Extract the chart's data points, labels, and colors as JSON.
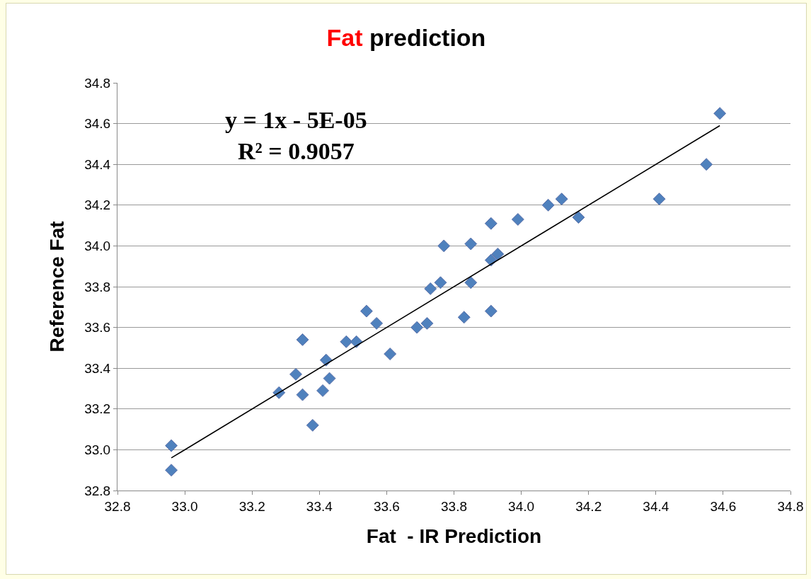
{
  "chart_data": {
    "type": "scatter",
    "title": "Fat prediction",
    "xlabel": "Fat  - IR Prediction",
    "ylabel": "Reference Fat",
    "annotations": [
      "y = 1x - 5E-05",
      "R² = 0.9057"
    ],
    "xlim": [
      32.8,
      34.8
    ],
    "xticks": [
      32.8,
      {
        "value": 33,
        "label": "33.0"
      },
      33.2,
      33.4,
      33.6,
      33.8,
      {
        "value": 34,
        "label": "34.0"
      },
      34.2,
      34.4,
      34.6,
      34.8
    ],
    "ylim": [
      32.8,
      34.8
    ],
    "yticks": [
      32.8,
      {
        "value": 33,
        "label": "33.0"
      },
      33.2,
      33.4,
      33.6,
      33.8,
      {
        "value": 34,
        "label": "34.0"
      },
      34.2,
      34.4,
      34.6,
      34.8
    ],
    "grid": "y",
    "legend": false,
    "marker": "diamond",
    "series": [
      {
        "color": "#4f81bd",
        "x": [
          32.96,
          32.96,
          33.28,
          33.33,
          33.35,
          33.35,
          33.38,
          33.42,
          33.41,
          33.43,
          33.48,
          33.51,
          33.54,
          33.57,
          33.61,
          33.69,
          33.72,
          33.73,
          33.76,
          33.77,
          33.83,
          33.85,
          33.85,
          33.91,
          33.91,
          33.93,
          33.91,
          33.99,
          34.08,
          34.12,
          34.17,
          34.41,
          34.55,
          34.59
        ],
        "values": [
          32.9,
          33.02,
          33.28,
          33.37,
          33.54,
          33.27,
          33.12,
          33.44,
          33.29,
          33.35,
          33.53,
          33.53,
          33.68,
          33.62,
          33.47,
          33.6,
          33.62,
          33.79,
          33.82,
          34.0,
          33.65,
          33.82,
          34.01,
          33.68,
          33.93,
          33.96,
          34.11,
          34.13,
          34.2,
          34.23,
          34.14,
          34.23,
          34.4,
          34.65
        ]
      },
      {
        "type": "line",
        "marker": "none",
        "color": "#000000",
        "x": [
          32.96,
          34.59
        ],
        "values": [
          32.96,
          34.59
        ]
      }
    ]
  }
}
